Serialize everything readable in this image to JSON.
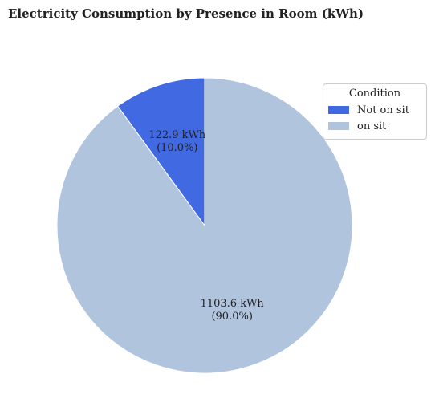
{
  "chart_data": {
    "type": "pie",
    "title": "Electricity Consumption by Presence in Room (kWh)",
    "legend_title": "Condition",
    "legend_placement": "top-right",
    "start_angle_deg": 90,
    "counterclockwise": true,
    "slices": [
      {
        "label": "Not on sit",
        "value": 122.9,
        "percent": "10.0%",
        "value_label": "122.9 kWh",
        "color": "#4169e1"
      },
      {
        "label": "on sit",
        "value": 1103.6,
        "percent": "90.0%",
        "value_label": "1103.6 kWh",
        "color": "#b0c4de"
      }
    ]
  }
}
